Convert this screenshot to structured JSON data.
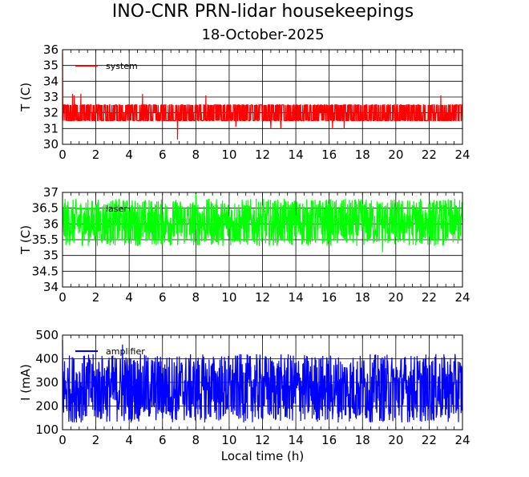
{
  "header": {
    "title": "INO-CNR PRN-lidar housekeepings",
    "subtitle": "18-October-2025"
  },
  "chart_data": [
    {
      "type": "line",
      "panel": "top",
      "ylabel": "T (C)",
      "xlabel": "",
      "xlim": [
        0,
        24
      ],
      "ylim": [
        30,
        36
      ],
      "x_ticks": [
        0,
        2,
        4,
        6,
        8,
        10,
        12,
        14,
        16,
        18,
        20,
        22,
        24
      ],
      "y_ticks": [
        30,
        31,
        32,
        33,
        34,
        35,
        36
      ],
      "grid": true,
      "legend_position": "top-left",
      "series": [
        {
          "name": "system",
          "color": "#ff0000",
          "typical_range": [
            31.5,
            32.5
          ],
          "spikes": [
            [
              0,
              35.8
            ],
            [
              0.6,
              33.2
            ],
            [
              0.7,
              33.1
            ],
            [
              1.1,
              33.2
            ],
            [
              4.8,
              33.2
            ],
            [
              6.9,
              30.3
            ],
            [
              8.6,
              33.1
            ],
            [
              10.4,
              31.1
            ],
            [
              12.5,
              31.0
            ],
            [
              13.1,
              31.0
            ],
            [
              16.2,
              31.0
            ],
            [
              16.9,
              31.0
            ],
            [
              22.7,
              33.1
            ]
          ]
        }
      ]
    },
    {
      "type": "line",
      "panel": "middle",
      "ylabel": "T (C)",
      "xlabel": "",
      "xlim": [
        0,
        24
      ],
      "ylim": [
        34,
        37
      ],
      "x_ticks": [
        0,
        2,
        4,
        6,
        8,
        10,
        12,
        14,
        16,
        18,
        20,
        22,
        24
      ],
      "y_ticks": [
        34,
        34.5,
        35,
        35.5,
        36,
        36.5,
        37
      ],
      "y_tick_labels": [
        "34",
        "34.5",
        "35",
        "35.5",
        "36",
        "36.5",
        "37"
      ],
      "grid": true,
      "legend_position": "top-left",
      "series": [
        {
          "name": "laser",
          "color": "#00ff00",
          "typical_range": [
            35.3,
            36.8
          ],
          "spikes": [
            [
              8.0,
              36.95
            ],
            [
              19.2,
              35.1
            ]
          ]
        }
      ]
    },
    {
      "type": "line",
      "panel": "bottom",
      "ylabel": "I (mA)",
      "xlabel": "Local time (h)",
      "xlim": [
        0,
        24
      ],
      "ylim": [
        100,
        500
      ],
      "x_ticks": [
        0,
        2,
        4,
        6,
        8,
        10,
        12,
        14,
        16,
        18,
        20,
        22,
        24
      ],
      "y_ticks": [
        100,
        200,
        300,
        400,
        500
      ],
      "grid": true,
      "legend_position": "top-left",
      "series": [
        {
          "name": "amplifier",
          "color": "#0000ff",
          "typical_range": [
            130,
            420
          ],
          "spikes": [
            [
              0,
              480
            ],
            [
              3.6,
              460
            ]
          ]
        }
      ]
    }
  ]
}
